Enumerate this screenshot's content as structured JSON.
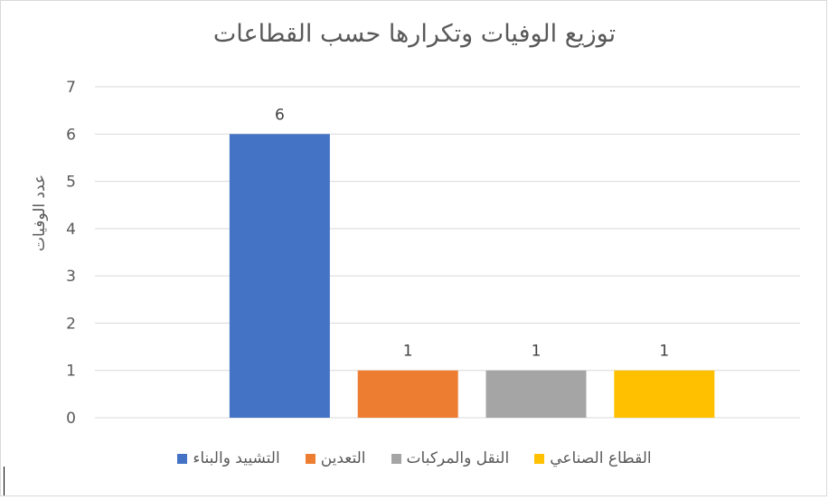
{
  "chart_data": {
    "type": "bar",
    "title": "توزيع الوفيات وتكرارها حسب القطاعات",
    "ylabel": "عدد الوفيات",
    "xlabel": "",
    "ylim": [
      0,
      7
    ],
    "y_ticks": [
      0,
      1,
      2,
      3,
      4,
      5,
      6,
      7
    ],
    "grid": true,
    "legend_position": "bottom",
    "series": [
      {
        "name": "التشييد والبناء",
        "value": 6,
        "color": "#4472c4"
      },
      {
        "name": "التعدين",
        "value": 1,
        "color": "#ed7d31"
      },
      {
        "name": "النقل والمركبات",
        "value": 1,
        "color": "#a5a5a5"
      },
      {
        "name": "القطاع الصناعي",
        "value": 1,
        "color": "#ffc000"
      }
    ]
  }
}
